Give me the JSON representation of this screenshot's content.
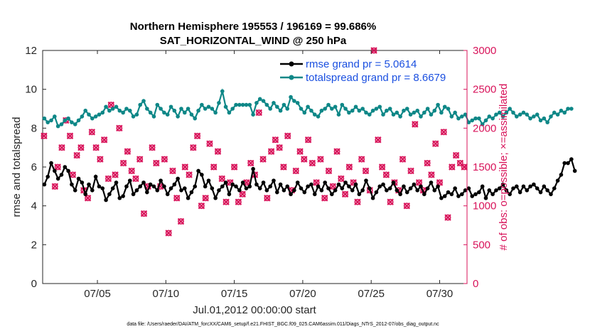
{
  "chart_data": {
    "type": "line",
    "title": [
      "Northern Hemisphere 195553 / 196169 = 99.686%",
      "SAT_HORIZONTAL_WIND @ 250 hPa"
    ],
    "xlabel": "Jul.01,2012 00:00:00 start",
    "ylabel": "rmse and totalspread",
    "ylabel_right": "# of obs: o=possible; ×=assimilated",
    "x_range": [
      1,
      32
    ],
    "ylim": [
      0,
      12
    ],
    "ylim_right": [
      0,
      3000
    ],
    "x_ticks": [
      {
        "x": 5,
        "label": "07/05"
      },
      {
        "x": 10,
        "label": "07/10"
      },
      {
        "x": 15,
        "label": "07/15"
      },
      {
        "x": 20,
        "label": "07/20"
      },
      {
        "x": 25,
        "label": "07/25"
      },
      {
        "x": 30,
        "label": "07/30"
      }
    ],
    "y_ticks": [
      "0",
      "2",
      "4",
      "6",
      "8",
      "10",
      "12"
    ],
    "y_ticks_right": [
      "0",
      "500",
      "1000",
      "1500",
      "2000",
      "2500",
      "3000"
    ],
    "legend_position": "top-right",
    "footnote": "data file: /Users/raeder/DAI/ATM_forcXX/CAM6_setup/f.e21.FHIST_BGC.f09_025.CAM6assim.011/Diags_NTrS_2012-07/obs_diag_output.nc",
    "step_days": 0.25,
    "x_start": 1.125,
    "series": [
      {
        "name": "rmse grand pr = 5.0614",
        "color": "#000000",
        "axis": "left",
        "values": [
          5.1,
          5.5,
          6.2,
          5.8,
          5.4,
          5.6,
          6.0,
          5.8,
          5.1,
          4.8,
          5.4,
          5.2,
          4.6,
          5.1,
          4.8,
          5.5,
          5.0,
          4.9,
          4.3,
          4.6,
          4.9,
          5.2,
          4.4,
          4.5,
          5.0,
          5.3,
          4.6,
          4.8,
          5.0,
          5.2,
          4.7,
          5.1,
          5.0,
          4.8,
          5.3,
          5.0,
          4.6,
          4.9,
          5.1,
          5.4,
          4.8,
          4.9,
          4.4,
          4.7,
          5.0,
          5.8,
          5.6,
          5.0,
          5.3,
          4.9,
          4.4,
          4.8,
          5.0,
          5.2,
          4.6,
          5.1,
          5.0,
          4.8,
          5.2,
          4.9,
          5.0,
          5.9,
          5.1,
          4.9,
          5.2,
          4.8,
          5.0,
          5.3,
          4.7,
          5.1,
          4.8,
          5.0,
          4.6,
          4.8,
          5.2,
          4.9,
          4.7,
          5.0,
          5.1,
          4.6,
          5.0,
          4.8,
          5.2,
          4.9,
          4.6,
          4.8,
          5.1,
          4.9,
          5.2,
          5.0,
          4.8,
          5.1,
          4.6,
          4.8,
          5.3,
          4.9,
          4.4,
          4.7,
          5.0,
          5.1,
          4.8,
          4.9,
          5.2,
          4.8,
          4.6,
          5.0,
          4.7,
          4.9,
          5.1,
          4.8,
          5.0,
          4.6,
          4.9,
          5.2,
          4.8,
          5.0,
          4.4,
          4.5,
          4.7,
          4.6,
          4.9,
          4.5,
          4.6,
          4.8,
          4.9,
          4.5,
          4.6,
          4.7,
          5.0,
          4.4,
          4.8,
          4.6,
          4.8,
          4.9,
          5.1,
          4.8,
          4.6,
          4.9,
          5.0,
          4.7,
          5.0,
          4.8,
          5.0,
          5.1,
          4.9,
          4.7,
          5.0,
          4.8,
          4.6,
          4.9,
          5.3,
          5.6,
          6.2,
          6.2,
          6.4,
          5.8
        ]
      },
      {
        "name": "totalspread grand pr = 8.6679",
        "color": "#0e8787",
        "axis": "left",
        "values": [
          8.5,
          8.3,
          8.4,
          8.6,
          8.1,
          8.2,
          8.4,
          8.5,
          8.3,
          8.2,
          8.4,
          8.6,
          8.9,
          8.7,
          8.5,
          8.6,
          8.7,
          8.8,
          9.1,
          8.9,
          9.0,
          9.1,
          8.9,
          8.8,
          9.0,
          8.9,
          8.6,
          8.7,
          9.2,
          9.4,
          9.0,
          8.8,
          8.6,
          9.2,
          9.0,
          8.8,
          8.7,
          9.1,
          8.9,
          8.6,
          9.0,
          8.8,
          9.0,
          8.7,
          8.5,
          8.9,
          9.2,
          9.0,
          9.1,
          9.0,
          8.8,
          9.3,
          9.9,
          9.1,
          8.8,
          9.0,
          9.2,
          9.2,
          9.2,
          9.2,
          9.2,
          8.7,
          9.3,
          9.5,
          9.4,
          9.2,
          9.0,
          9.3,
          9.1,
          8.9,
          9.2,
          9.0,
          9.6,
          9.4,
          9.3,
          9.0,
          8.8,
          9.1,
          8.9,
          8.7,
          8.6,
          8.9,
          9.0,
          9.2,
          9.0,
          9.1,
          8.7,
          9.2,
          9.0,
          8.8,
          8.9,
          9.1,
          8.9,
          9.0,
          8.8,
          8.7,
          8.9,
          9.0,
          9.1,
          8.7,
          8.9,
          9.0,
          8.7,
          8.8,
          8.6,
          8.9,
          9.0,
          8.7,
          8.8,
          8.9,
          8.6,
          8.8,
          9.0,
          8.7,
          8.9,
          9.2,
          8.8,
          9.1,
          9.0,
          8.6,
          8.8,
          8.5,
          8.6,
          8.7,
          8.3,
          8.4,
          8.5,
          8.5,
          8.2,
          8.4,
          8.6,
          8.5,
          8.7,
          8.8,
          8.6,
          8.8,
          9.0,
          8.8,
          8.6,
          8.7,
          8.8,
          8.7,
          8.5,
          8.6,
          8.7,
          8.4,
          8.5,
          8.3,
          8.6,
          8.8,
          8.7,
          8.9,
          8.8,
          9.0,
          9.0
        ]
      },
      {
        "name": "obs possible",
        "color": "#d8135a",
        "axis": "right",
        "marker": "circle",
        "points": [
          [
            1.1,
            1900
          ],
          [
            1.9,
            1250
          ],
          [
            2.1,
            1500
          ],
          [
            2.4,
            1750
          ],
          [
            2.7,
            2100
          ],
          [
            3.0,
            1900
          ],
          [
            3.2,
            1400
          ],
          [
            3.5,
            1650
          ],
          [
            3.8,
            1750
          ],
          [
            4.0,
            1200
          ],
          [
            4.3,
            1100
          ],
          [
            4.6,
            1950
          ],
          [
            4.9,
            1750
          ],
          [
            5.2,
            1600
          ],
          [
            5.5,
            1850
          ],
          [
            5.8,
            1350
          ],
          [
            6.0,
            2300
          ],
          [
            6.3,
            1400
          ],
          [
            6.6,
            2000
          ],
          [
            6.9,
            1550
          ],
          [
            7.2,
            1700
          ],
          [
            7.5,
            1450
          ],
          [
            7.8,
            1350
          ],
          [
            8.1,
            1600
          ],
          [
            8.4,
            900
          ],
          [
            8.7,
            1250
          ],
          [
            9.0,
            1750
          ],
          [
            9.3,
            1550
          ],
          [
            9.6,
            1250
          ],
          [
            9.9,
            1600
          ],
          [
            10.2,
            650
          ],
          [
            10.5,
            1450
          ],
          [
            10.8,
            1100
          ],
          [
            11.1,
            800
          ],
          [
            11.4,
            1500
          ],
          [
            11.7,
            1400
          ],
          [
            12.0,
            1750
          ],
          [
            12.3,
            1900
          ],
          [
            12.6,
            1000
          ],
          [
            12.9,
            1100
          ],
          [
            13.2,
            1800
          ],
          [
            13.5,
            1500
          ],
          [
            13.8,
            1700
          ],
          [
            14.1,
            1350
          ],
          [
            14.4,
            1050
          ],
          [
            14.7,
            1300
          ],
          [
            15.0,
            1500
          ],
          [
            15.3,
            1050
          ],
          [
            15.6,
            1150
          ],
          [
            15.9,
            1300
          ],
          [
            16.2,
            1550
          ],
          [
            16.5,
            1400
          ],
          [
            16.8,
            2200
          ],
          [
            17.1,
            1600
          ],
          [
            17.4,
            1100
          ],
          [
            17.7,
            1700
          ],
          [
            18.0,
            1850
          ],
          [
            18.3,
            1750
          ],
          [
            18.6,
            1500
          ],
          [
            18.9,
            1900
          ],
          [
            19.2,
            1200
          ],
          [
            19.5,
            1450
          ],
          [
            19.8,
            1700
          ],
          [
            20.1,
            1600
          ],
          [
            20.4,
            1850
          ],
          [
            20.7,
            1550
          ],
          [
            21.0,
            1300
          ],
          [
            21.3,
            1600
          ],
          [
            21.6,
            1100
          ],
          [
            21.9,
            1450
          ],
          [
            22.2,
            1250
          ],
          [
            22.5,
            1700
          ],
          [
            22.8,
            1350
          ],
          [
            23.1,
            1150
          ],
          [
            23.4,
            1500
          ],
          [
            23.7,
            1300
          ],
          [
            24.0,
            1050
          ],
          [
            24.3,
            1600
          ],
          [
            24.6,
            1450
          ],
          [
            24.9,
            1200
          ],
          [
            25.2,
            3000
          ],
          [
            25.5,
            1850
          ],
          [
            25.8,
            1500
          ],
          [
            26.1,
            1400
          ],
          [
            26.4,
            1050
          ],
          [
            26.7,
            1300
          ],
          [
            27.0,
            1200
          ],
          [
            27.3,
            1600
          ],
          [
            27.6,
            1000
          ],
          [
            27.9,
            1450
          ],
          [
            28.2,
            2050
          ],
          [
            28.5,
            1300
          ],
          [
            28.8,
            1200
          ],
          [
            29.1,
            1550
          ],
          [
            29.4,
            1400
          ],
          [
            29.7,
            1800
          ],
          [
            30.0,
            1300
          ],
          [
            30.3,
            1950
          ],
          [
            30.6,
            850
          ],
          [
            30.9,
            1500
          ],
          [
            31.2,
            1650
          ],
          [
            31.5,
            1550
          ],
          [
            31.8,
            1500
          ]
        ]
      },
      {
        "name": "obs assimilated",
        "color": "#d8135a",
        "axis": "right",
        "marker": "x",
        "points": [
          [
            1.1,
            1900
          ],
          [
            1.9,
            1250
          ],
          [
            2.1,
            1500
          ],
          [
            2.4,
            1750
          ],
          [
            2.7,
            2100
          ],
          [
            3.0,
            1900
          ],
          [
            3.2,
            1400
          ],
          [
            3.5,
            1650
          ],
          [
            3.8,
            1750
          ],
          [
            4.0,
            1200
          ],
          [
            4.3,
            1100
          ],
          [
            4.6,
            1950
          ],
          [
            4.9,
            1750
          ],
          [
            5.2,
            1600
          ],
          [
            5.5,
            1850
          ],
          [
            5.8,
            1350
          ],
          [
            6.0,
            2300
          ],
          [
            6.3,
            1400
          ],
          [
            6.6,
            2000
          ],
          [
            6.9,
            1550
          ],
          [
            7.2,
            1700
          ],
          [
            7.5,
            1450
          ],
          [
            7.8,
            1350
          ],
          [
            8.1,
            1600
          ],
          [
            8.4,
            900
          ],
          [
            8.7,
            1250
          ],
          [
            9.0,
            1750
          ],
          [
            9.3,
            1550
          ],
          [
            9.6,
            1250
          ],
          [
            9.9,
            1600
          ],
          [
            10.2,
            650
          ],
          [
            10.5,
            1450
          ],
          [
            10.8,
            1100
          ],
          [
            11.1,
            800
          ],
          [
            11.4,
            1500
          ],
          [
            11.7,
            1400
          ],
          [
            12.0,
            1750
          ],
          [
            12.3,
            1900
          ],
          [
            12.6,
            1000
          ],
          [
            12.9,
            1100
          ],
          [
            13.2,
            1800
          ],
          [
            13.5,
            1500
          ],
          [
            13.8,
            1700
          ],
          [
            14.1,
            1350
          ],
          [
            14.4,
            1050
          ],
          [
            14.7,
            1300
          ],
          [
            15.0,
            1500
          ],
          [
            15.3,
            1050
          ],
          [
            15.6,
            1150
          ],
          [
            15.9,
            1300
          ],
          [
            16.2,
            1550
          ],
          [
            16.5,
            1400
          ],
          [
            16.8,
            2200
          ],
          [
            17.1,
            1600
          ],
          [
            17.4,
            1100
          ],
          [
            17.7,
            1700
          ],
          [
            18.0,
            1850
          ],
          [
            18.3,
            1750
          ],
          [
            18.6,
            1500
          ],
          [
            18.9,
            1900
          ],
          [
            19.2,
            1200
          ],
          [
            19.5,
            1450
          ],
          [
            19.8,
            1700
          ],
          [
            20.1,
            1600
          ],
          [
            20.4,
            1850
          ],
          [
            20.7,
            1550
          ],
          [
            21.0,
            1300
          ],
          [
            21.3,
            1600
          ],
          [
            21.6,
            1100
          ],
          [
            21.9,
            1450
          ],
          [
            22.2,
            1250
          ],
          [
            22.5,
            1700
          ],
          [
            22.8,
            1350
          ],
          [
            23.1,
            1150
          ],
          [
            23.4,
            1500
          ],
          [
            23.7,
            1300
          ],
          [
            24.0,
            1050
          ],
          [
            24.3,
            1600
          ],
          [
            24.6,
            1450
          ],
          [
            24.9,
            1200
          ],
          [
            25.2,
            3000
          ],
          [
            25.5,
            1850
          ],
          [
            25.8,
            1500
          ],
          [
            26.1,
            1400
          ],
          [
            26.4,
            1050
          ],
          [
            26.7,
            1300
          ],
          [
            27.0,
            1200
          ],
          [
            27.3,
            1600
          ],
          [
            27.6,
            1000
          ],
          [
            27.9,
            1450
          ],
          [
            28.2,
            2050
          ],
          [
            28.5,
            1300
          ],
          [
            28.8,
            1200
          ],
          [
            29.1,
            1550
          ],
          [
            29.4,
            1400
          ],
          [
            29.7,
            1800
          ],
          [
            30.0,
            1300
          ],
          [
            30.3,
            1950
          ],
          [
            30.6,
            850
          ],
          [
            30.9,
            1500
          ],
          [
            31.2,
            1650
          ],
          [
            31.5,
            1550
          ],
          [
            31.8,
            1500
          ]
        ]
      }
    ]
  }
}
